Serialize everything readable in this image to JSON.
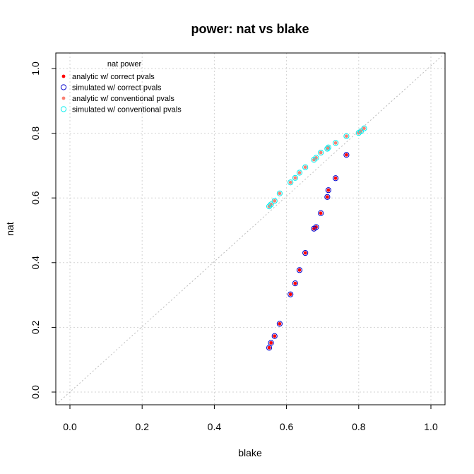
{
  "chart_data": {
    "type": "scatter",
    "title": "power: nat vs blake",
    "xlabel": "blake",
    "ylabel": "nat",
    "xlim": [
      0.0,
      1.0
    ],
    "ylim": [
      0.0,
      1.0
    ],
    "x_ticks": [
      "0.0",
      "0.2",
      "0.4",
      "0.6",
      "0.8",
      "1.0"
    ],
    "y_ticks": [
      "0.0",
      "0.2",
      "0.4",
      "0.6",
      "0.8",
      "1.0"
    ],
    "grid": true,
    "reference_line": "y = x",
    "legend": {
      "title": "nat power",
      "placement": "top-left",
      "entries": [
        {
          "label": "analytic w/ correct pvals",
          "color": "#ff0000",
          "marker": "filled-circle"
        },
        {
          "label": "simulated w/ correct pvals",
          "color": "#0000cc",
          "marker": "open-circle"
        },
        {
          "label": "analytic w/ conventional pvals",
          "color": "#fa8072",
          "marker": "filled-circle"
        },
        {
          "label": "simulated w/ conventional pvals",
          "color": "#00eeee",
          "marker": "open-circle"
        }
      ]
    },
    "series": [
      {
        "name": "analytic w/ correct pvals",
        "color": "#ff0000",
        "marker": "filled-circle",
        "x": [
          0.552,
          0.557,
          0.567,
          0.581,
          0.611,
          0.624,
          0.636,
          0.652,
          0.676,
          0.682,
          0.695,
          0.713,
          0.716,
          0.736,
          0.766
        ],
        "y": [
          0.137,
          0.152,
          0.173,
          0.211,
          0.302,
          0.336,
          0.377,
          0.43,
          0.505,
          0.51,
          0.553,
          0.603,
          0.624,
          0.661,
          0.733
        ]
      },
      {
        "name": "simulated w/ correct pvals",
        "color": "#0000cc",
        "marker": "open-circle",
        "x": [
          0.552,
          0.557,
          0.567,
          0.581,
          0.611,
          0.624,
          0.636,
          0.652,
          0.676,
          0.682,
          0.695,
          0.713,
          0.716,
          0.736,
          0.766
        ],
        "y": [
          0.137,
          0.152,
          0.173,
          0.211,
          0.302,
          0.336,
          0.377,
          0.43,
          0.505,
          0.51,
          0.553,
          0.603,
          0.624,
          0.661,
          0.733
        ]
      },
      {
        "name": "analytic w/ conventional pvals",
        "color": "#fa8072",
        "marker": "filled-circle",
        "x": [
          0.552,
          0.557,
          0.567,
          0.581,
          0.611,
          0.624,
          0.636,
          0.652,
          0.676,
          0.682,
          0.695,
          0.713,
          0.716,
          0.736,
          0.766,
          0.8,
          0.806,
          0.815
        ],
        "y": [
          0.574,
          0.58,
          0.591,
          0.614,
          0.648,
          0.662,
          0.678,
          0.695,
          0.718,
          0.724,
          0.74,
          0.752,
          0.756,
          0.77,
          0.791,
          0.801,
          0.806,
          0.815
        ]
      },
      {
        "name": "simulated w/ conventional pvals",
        "color": "#00eeee",
        "marker": "open-circle",
        "x": [
          0.552,
          0.557,
          0.567,
          0.581,
          0.611,
          0.624,
          0.636,
          0.652,
          0.676,
          0.682,
          0.695,
          0.713,
          0.716,
          0.736,
          0.766,
          0.8,
          0.806,
          0.815
        ],
        "y": [
          0.574,
          0.58,
          0.591,
          0.614,
          0.648,
          0.662,
          0.678,
          0.695,
          0.718,
          0.724,
          0.74,
          0.752,
          0.756,
          0.77,
          0.791,
          0.801,
          0.806,
          0.815
        ]
      }
    ]
  }
}
